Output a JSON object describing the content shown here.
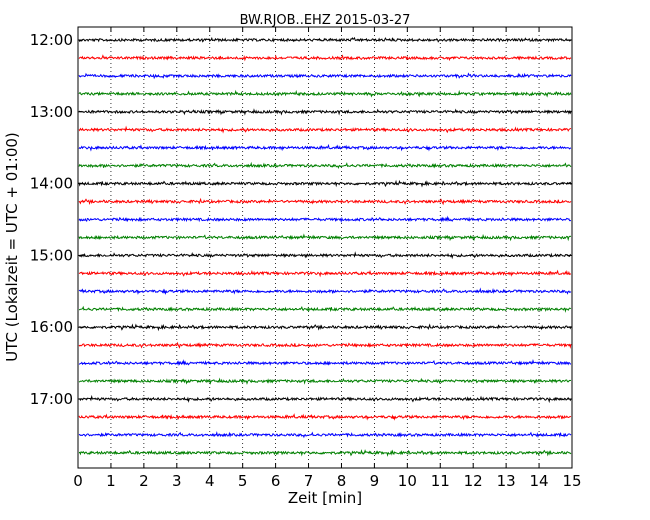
{
  "chart_data": {
    "type": "line",
    "title": "BW.RJOB..EHZ 2015-03-27",
    "xlabel": "Zeit  [min]",
    "ylabel": "UTC (Lokalzeit = UTC + 01:00)",
    "xlim": [
      0,
      15
    ],
    "x_ticks": [
      "0",
      "1",
      "2",
      "3",
      "4",
      "5",
      "6",
      "7",
      "8",
      "9",
      "10",
      "11",
      "12",
      "13",
      "14",
      "15"
    ],
    "y_ticks": [
      "12:00",
      "13:00",
      "14:00",
      "15:00",
      "16:00",
      "17:00"
    ],
    "trace_start_times": [
      "12:00",
      "12:15",
      "12:30",
      "12:45",
      "13:00",
      "13:15",
      "13:30",
      "13:45",
      "14:00",
      "14:15",
      "14:30",
      "14:45",
      "15:00",
      "15:15",
      "15:30",
      "15:45",
      "16:00",
      "16:15",
      "16:30",
      "16:45",
      "17:00",
      "17:15",
      "17:30",
      "17:45"
    ],
    "trace_colors": [
      "#000000",
      "#ff0000",
      "#0000ff",
      "#008000"
    ],
    "trace_duration_min": 15,
    "grid": "vertical-dotted",
    "legend": "none"
  }
}
